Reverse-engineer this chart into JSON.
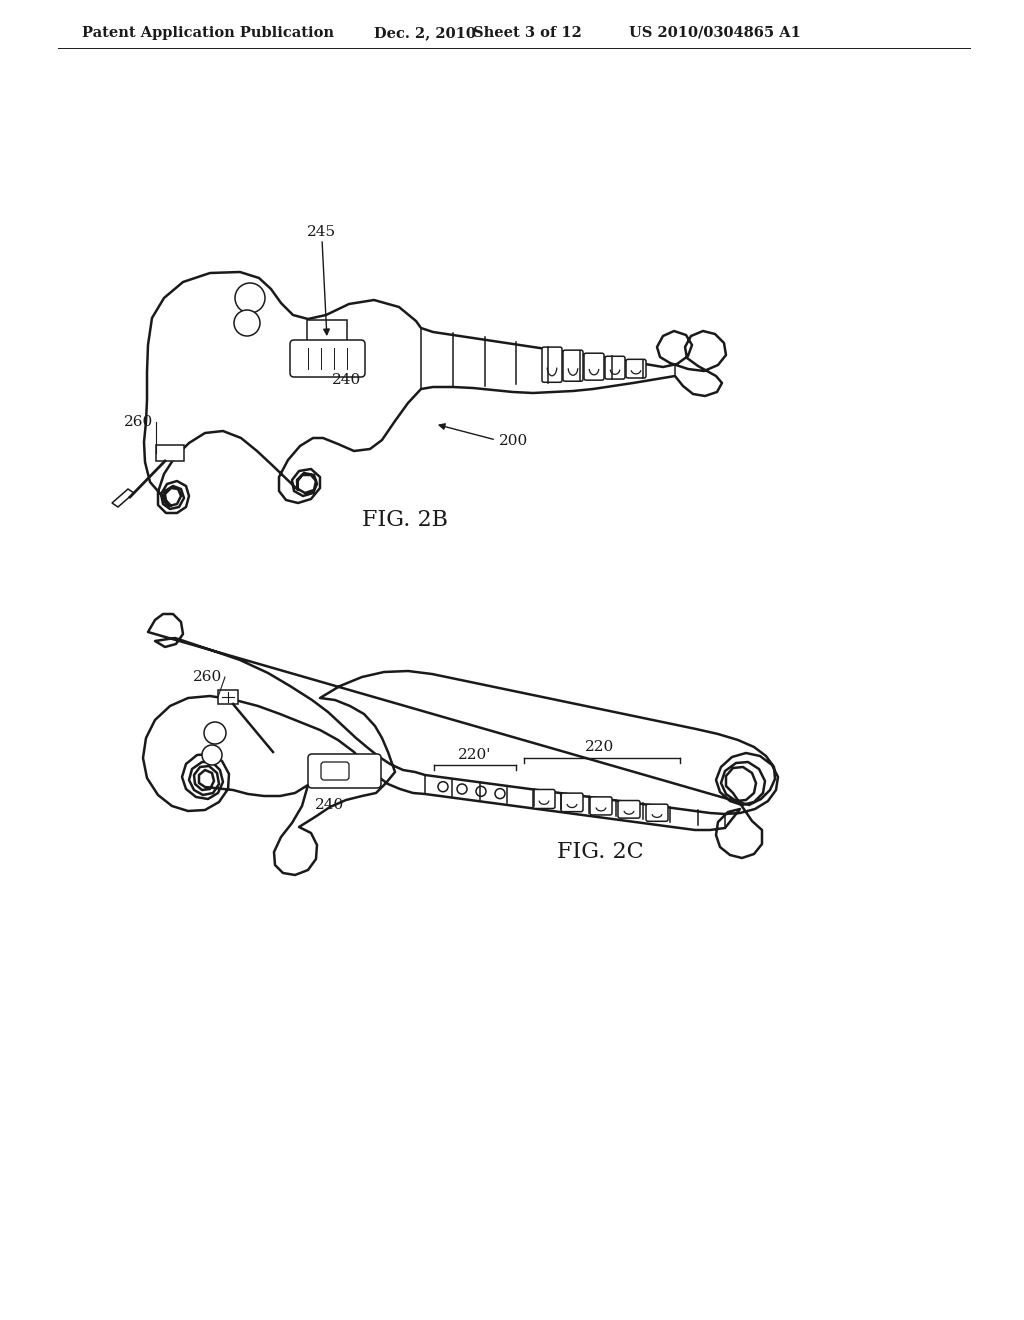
{
  "bg": "#ffffff",
  "lc": "#1a1a1a",
  "lw": 1.8,
  "lw_thin": 1.1,
  "header_left": "Patent Application Publication",
  "header_date": "Dec. 2, 2010",
  "header_sheet": "Sheet 3 of 12",
  "header_patent": "US 2010/0304865 A1",
  "fig2b_title": "FIG. 2B",
  "fig2c_title": "FIG. 2C",
  "label_245": "245",
  "label_240": "240",
  "label_260": "260",
  "label_200": "200",
  "label_220": "220",
  "label_220p": "220'"
}
